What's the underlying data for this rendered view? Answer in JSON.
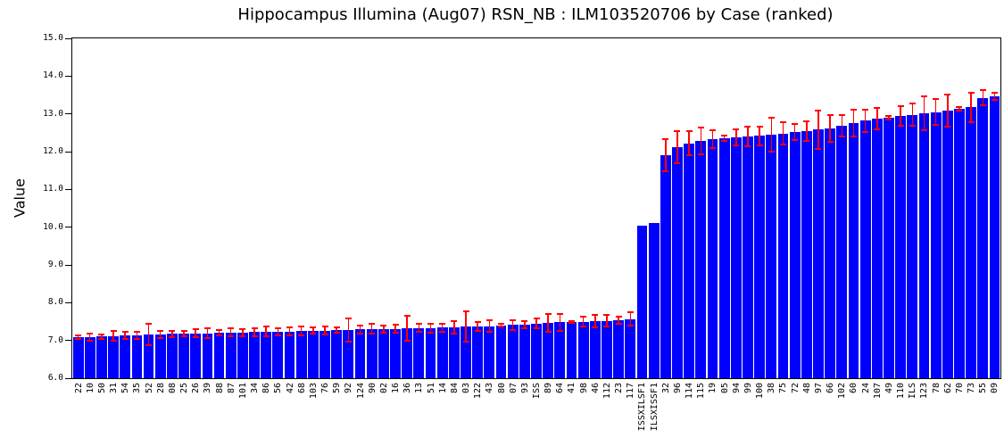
{
  "title": "Hippocampus Illumina (Aug07) RSN_NB : ILM103520706 by Case (ranked)",
  "colors": {
    "bar": "#0000ff",
    "error": "#ff0000",
    "axis": "#000000",
    "background": "#ffffff"
  },
  "chart_data": {
    "type": "bar",
    "title": "Hippocampus Illumina (Aug07) RSN_NB : ILM103520706 by Case (ranked)",
    "xlabel": "",
    "ylabel": "Value",
    "ylim": [
      6.0,
      15.0
    ],
    "ytick_step": 1.0,
    "ytick_labels": [
      "6.0",
      "7.0",
      "8.0",
      "9.0",
      "10.0",
      "11.0",
      "12.0",
      "13.0",
      "14.0",
      "15.0"
    ],
    "grid": false,
    "legend_position": "none",
    "bar_color": "#0000ff",
    "error_color": "#ff0000",
    "categories": [
      "22",
      "10",
      "50",
      "31",
      "54",
      "35",
      "52",
      "28",
      "08",
      "25",
      "26",
      "39",
      "88",
      "87",
      "101",
      "34",
      "86",
      "56",
      "42",
      "68",
      "103",
      "76",
      "59",
      "92",
      "124",
      "90",
      "02",
      "16",
      "36",
      "13",
      "51",
      "14",
      "84",
      "03",
      "122",
      "43",
      "80",
      "07",
      "93",
      "ISS",
      "89",
      "64",
      "41",
      "98",
      "46",
      "112",
      "23",
      "117",
      "ISSXILSF1",
      "ILSXISSF1",
      "32",
      "96",
      "114",
      "115",
      "19",
      "05",
      "94",
      "99",
      "100",
      "38",
      "75",
      "72",
      "48",
      "97",
      "66",
      "102",
      "60",
      "24",
      "107",
      "49",
      "110",
      "ILS",
      "123",
      "78",
      "62",
      "70",
      "73",
      "55",
      "09"
    ],
    "values": [
      7.08,
      7.09,
      7.1,
      7.12,
      7.13,
      7.14,
      7.15,
      7.16,
      7.17,
      7.18,
      7.19,
      7.19,
      7.2,
      7.21,
      7.21,
      7.22,
      7.23,
      7.23,
      7.24,
      7.25,
      7.26,
      7.26,
      7.27,
      7.28,
      7.29,
      7.3,
      7.3,
      7.31,
      7.32,
      7.33,
      7.33,
      7.34,
      7.35,
      7.36,
      7.37,
      7.38,
      7.4,
      7.41,
      7.42,
      7.45,
      7.46,
      7.48,
      7.49,
      7.5,
      7.51,
      7.52,
      7.53,
      7.57,
      10.05,
      10.1,
      11.9,
      12.12,
      12.22,
      12.28,
      12.33,
      12.36,
      12.38,
      12.4,
      12.42,
      12.44,
      12.48,
      12.52,
      12.55,
      12.58,
      12.62,
      12.68,
      12.75,
      12.82,
      12.87,
      12.9,
      12.94,
      12.98,
      13.01,
      13.05,
      13.09,
      13.13,
      13.17,
      13.42,
      13.47
    ],
    "errors": [
      0.05,
      0.09,
      0.05,
      0.13,
      0.09,
      0.1,
      0.28,
      0.1,
      0.09,
      0.07,
      0.1,
      0.13,
      0.07,
      0.11,
      0.09,
      0.1,
      0.13,
      0.09,
      0.11,
      0.12,
      0.09,
      0.11,
      0.07,
      0.3,
      0.11,
      0.13,
      0.09,
      0.11,
      0.33,
      0.1,
      0.12,
      0.1,
      0.16,
      0.4,
      0.11,
      0.15,
      0.03,
      0.13,
      0.1,
      0.13,
      0.24,
      0.22,
      0.03,
      0.13,
      0.16,
      0.15,
      0.09,
      0.18,
      0.0,
      0.0,
      0.42,
      0.42,
      0.32,
      0.36,
      0.24,
      0.07,
      0.22,
      0.26,
      0.25,
      0.45,
      0.3,
      0.22,
      0.26,
      0.5,
      0.35,
      0.28,
      0.36,
      0.3,
      0.28,
      0.05,
      0.26,
      0.3,
      0.45,
      0.35,
      0.42,
      0.04,
      0.4,
      0.2,
      0.1
    ]
  }
}
